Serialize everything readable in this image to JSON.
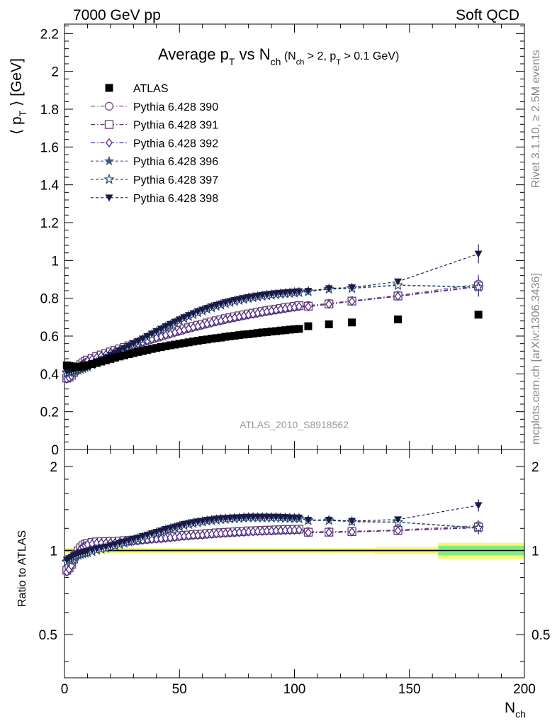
{
  "header": {
    "left": "7000 GeV pp",
    "right": "Soft QCD"
  },
  "side_labels": {
    "rivet": "Rivet 3.1.10, ≥ 2.5M events",
    "source": "mcplots.cern.ch [arXiv:1306.3436]"
  },
  "plot_title": {
    "main": "Average p",
    "main_sub": "T",
    "mid": " vs N",
    "mid_sub": "ch",
    "cut_a": " (N",
    "cut_a_sub": "ch",
    "cut_b": " > 2, p",
    "cut_b_sub": "T",
    "cut_c": " > 0.1 GeV)"
  },
  "analysis_tag": "ATLAS_2010_S8918562",
  "y_label": {
    "pre": "⟨ p",
    "sub": "T",
    "post": " ⟩ [GeV]"
  },
  "x_label": {
    "main": "N",
    "sub": "ch"
  },
  "ratio_ylabel": "Ratio to ATLAS",
  "chart_data": {
    "type": "scatter",
    "main": {
      "xlim": [
        0,
        200
      ],
      "ylim": [
        0,
        2.25
      ],
      "x_ticks": [
        "0",
        "50",
        "100",
        "150",
        "200"
      ],
      "y_ticks": [
        "0",
        "0.2",
        "0.4",
        "0.6",
        "0.8",
        "1",
        "1.2",
        "1.4",
        "1.6",
        "1.8",
        "2",
        "2.2"
      ]
    },
    "ratio": {
      "xlim": [
        0,
        200
      ],
      "ylim": [
        0.35,
        2.3
      ],
      "log_scale": true,
      "y_ticks": [
        "0.5",
        "1",
        "2"
      ]
    },
    "legend_position": "top-left",
    "x": [
      1,
      2,
      3,
      4,
      5,
      6,
      7,
      8,
      9,
      10,
      12,
      14,
      16,
      18,
      20,
      22,
      24,
      26,
      28,
      30,
      32,
      34,
      36,
      38,
      40,
      42,
      44,
      46,
      48,
      50,
      52,
      54,
      56,
      58,
      60,
      62,
      64,
      66,
      68,
      70,
      72,
      74,
      76,
      78,
      80,
      82,
      84,
      86,
      88,
      90,
      92,
      94,
      96,
      98,
      100,
      102,
      106,
      115,
      125,
      145,
      180
    ],
    "atlas": {
      "name": "ATLAS",
      "color": "#000000",
      "values": [
        0.445,
        0.442,
        0.44,
        0.438,
        0.437,
        0.437,
        0.438,
        0.44,
        0.443,
        0.446,
        0.452,
        0.458,
        0.465,
        0.472,
        0.479,
        0.486,
        0.492,
        0.498,
        0.504,
        0.51,
        0.516,
        0.521,
        0.527,
        0.532,
        0.537,
        0.542,
        0.546,
        0.551,
        0.555,
        0.559,
        0.563,
        0.567,
        0.571,
        0.575,
        0.579,
        0.582,
        0.586,
        0.589,
        0.592,
        0.596,
        0.599,
        0.602,
        0.605,
        0.608,
        0.61,
        0.613,
        0.616,
        0.619,
        0.621,
        0.624,
        0.626,
        0.629,
        0.631,
        0.634,
        0.636,
        0.638,
        0.652,
        0.662,
        0.672,
        0.688,
        0.713
      ]
    },
    "ratio_band": {
      "inner_color": "#80ee80",
      "outer_color": "#f8f870",
      "inner_half_width": [
        0.01,
        0.01,
        0.01,
        0.01,
        0.01,
        0.01,
        0.01,
        0.01,
        0.01,
        0.01,
        0.01,
        0.01,
        0.01,
        0.01,
        0.01,
        0.01,
        0.01,
        0.01,
        0.01,
        0.01,
        0.01,
        0.01,
        0.01,
        0.01,
        0.01,
        0.01,
        0.01,
        0.01,
        0.01,
        0.01,
        0.01,
        0.01,
        0.01,
        0.01,
        0.01,
        0.01,
        0.01,
        0.01,
        0.01,
        0.01,
        0.01,
        0.01,
        0.01,
        0.01,
        0.01,
        0.01,
        0.01,
        0.01,
        0.01,
        0.01,
        0.01,
        0.01,
        0.01,
        0.01,
        0.01,
        0.01,
        0.01,
        0.01,
        0.01,
        0.01,
        0.04
      ],
      "outer_half_width": [
        0.02,
        0.02,
        0.02,
        0.02,
        0.02,
        0.02,
        0.02,
        0.02,
        0.02,
        0.02,
        0.02,
        0.02,
        0.02,
        0.02,
        0.02,
        0.02,
        0.02,
        0.02,
        0.02,
        0.02,
        0.02,
        0.02,
        0.02,
        0.02,
        0.02,
        0.02,
        0.02,
        0.02,
        0.02,
        0.02,
        0.02,
        0.02,
        0.02,
        0.02,
        0.02,
        0.02,
        0.02,
        0.02,
        0.02,
        0.02,
        0.02,
        0.02,
        0.02,
        0.02,
        0.02,
        0.02,
        0.02,
        0.02,
        0.02,
        0.02,
        0.02,
        0.02,
        0.02,
        0.02,
        0.02,
        0.02,
        0.02,
        0.02,
        0.02,
        0.03,
        0.065
      ]
    },
    "series": [
      {
        "name": "Pythia 6.428 390",
        "marker": "circle-open",
        "dash": "dashdot",
        "color": "#7a4a8a",
        "values": [
          0.375,
          0.38,
          0.39,
          0.405,
          0.42,
          0.433,
          0.445,
          0.455,
          0.463,
          0.47,
          0.48,
          0.489,
          0.497,
          0.505,
          0.513,
          0.521,
          0.529,
          0.537,
          0.545,
          0.553,
          0.561,
          0.569,
          0.577,
          0.585,
          0.592,
          0.599,
          0.607,
          0.614,
          0.621,
          0.628,
          0.635,
          0.641,
          0.648,
          0.654,
          0.66,
          0.666,
          0.672,
          0.678,
          0.683,
          0.689,
          0.694,
          0.699,
          0.704,
          0.709,
          0.714,
          0.718,
          0.723,
          0.727,
          0.731,
          0.735,
          0.739,
          0.743,
          0.747,
          0.751,
          0.754,
          0.758,
          0.762,
          0.773,
          0.787,
          0.815,
          0.875
        ]
      },
      {
        "name": "Pythia 6.428 391",
        "marker": "square-open",
        "dash": "dashdot",
        "color": "#6a3a6e",
        "values": [
          0.378,
          0.383,
          0.393,
          0.408,
          0.423,
          0.436,
          0.448,
          0.458,
          0.466,
          0.473,
          0.483,
          0.492,
          0.5,
          0.508,
          0.516,
          0.524,
          0.532,
          0.54,
          0.548,
          0.556,
          0.564,
          0.572,
          0.58,
          0.588,
          0.595,
          0.602,
          0.61,
          0.617,
          0.624,
          0.631,
          0.638,
          0.644,
          0.651,
          0.657,
          0.663,
          0.669,
          0.675,
          0.681,
          0.686,
          0.692,
          0.697,
          0.702,
          0.707,
          0.712,
          0.717,
          0.721,
          0.726,
          0.73,
          0.734,
          0.738,
          0.742,
          0.746,
          0.75,
          0.754,
          0.757,
          0.761,
          0.758,
          0.77,
          0.785,
          0.812,
          0.865
        ]
      },
      {
        "name": "Pythia 6.428 392",
        "marker": "diamond-open",
        "dash": "dashdot",
        "color": "#4a2a8a",
        "values": [
          0.372,
          0.378,
          0.388,
          0.403,
          0.418,
          0.431,
          0.443,
          0.453,
          0.461,
          0.468,
          0.478,
          0.487,
          0.495,
          0.503,
          0.511,
          0.519,
          0.527,
          0.535,
          0.543,
          0.551,
          0.559,
          0.567,
          0.575,
          0.583,
          0.59,
          0.597,
          0.605,
          0.612,
          0.619,
          0.626,
          0.633,
          0.639,
          0.646,
          0.652,
          0.658,
          0.664,
          0.67,
          0.676,
          0.681,
          0.687,
          0.692,
          0.697,
          0.702,
          0.707,
          0.712,
          0.716,
          0.721,
          0.725,
          0.729,
          0.733,
          0.737,
          0.741,
          0.745,
          0.749,
          0.752,
          0.756,
          0.755,
          0.768,
          0.783,
          0.81,
          0.86
        ]
      },
      {
        "name": "Pythia 6.428 396",
        "marker": "star-filled",
        "dash": "dashed",
        "color": "#3a5a7a",
        "values": [
          0.41,
          0.412,
          0.415,
          0.418,
          0.421,
          0.424,
          0.428,
          0.432,
          0.437,
          0.442,
          0.452,
          0.463,
          0.474,
          0.485,
          0.497,
          0.509,
          0.521,
          0.533,
          0.545,
          0.558,
          0.571,
          0.584,
          0.597,
          0.61,
          0.623,
          0.636,
          0.649,
          0.661,
          0.673,
          0.685,
          0.697,
          0.708,
          0.718,
          0.728,
          0.737,
          0.746,
          0.754,
          0.762,
          0.769,
          0.776,
          0.782,
          0.788,
          0.793,
          0.798,
          0.803,
          0.807,
          0.811,
          0.815,
          0.818,
          0.821,
          0.824,
          0.826,
          0.828,
          0.83,
          0.832,
          0.834,
          0.838,
          0.85,
          0.855,
          0.87,
          0.86
        ]
      },
      {
        "name": "Pythia 6.428 397",
        "marker": "star-open",
        "dash": "dashed",
        "color": "#2a4a6e",
        "values": [
          0.405,
          0.408,
          0.411,
          0.414,
          0.417,
          0.42,
          0.424,
          0.428,
          0.433,
          0.438,
          0.448,
          0.459,
          0.47,
          0.481,
          0.493,
          0.505,
          0.517,
          0.529,
          0.541,
          0.554,
          0.567,
          0.58,
          0.593,
          0.606,
          0.619,
          0.632,
          0.645,
          0.657,
          0.669,
          0.681,
          0.693,
          0.704,
          0.714,
          0.724,
          0.733,
          0.742,
          0.75,
          0.758,
          0.765,
          0.772,
          0.778,
          0.784,
          0.789,
          0.794,
          0.799,
          0.803,
          0.807,
          0.811,
          0.814,
          0.817,
          0.82,
          0.822,
          0.824,
          0.826,
          0.828,
          0.83,
          0.835,
          0.848,
          0.852,
          0.868,
          0.858
        ]
      },
      {
        "name": "Pythia 6.428 398",
        "marker": "triangle-down-filled",
        "dash": "dashed",
        "color": "#1a1a4a",
        "values": [
          0.412,
          0.414,
          0.417,
          0.42,
          0.423,
          0.426,
          0.43,
          0.434,
          0.439,
          0.444,
          0.454,
          0.465,
          0.476,
          0.487,
          0.499,
          0.511,
          0.523,
          0.535,
          0.547,
          0.56,
          0.573,
          0.586,
          0.599,
          0.612,
          0.625,
          0.638,
          0.651,
          0.663,
          0.675,
          0.687,
          0.699,
          0.71,
          0.72,
          0.73,
          0.739,
          0.748,
          0.756,
          0.764,
          0.771,
          0.778,
          0.784,
          0.79,
          0.795,
          0.8,
          0.805,
          0.809,
          0.813,
          0.817,
          0.82,
          0.823,
          0.826,
          0.828,
          0.83,
          0.832,
          0.834,
          0.836,
          0.838,
          0.852,
          0.857,
          0.888,
          1.035
        ]
      }
    ]
  }
}
